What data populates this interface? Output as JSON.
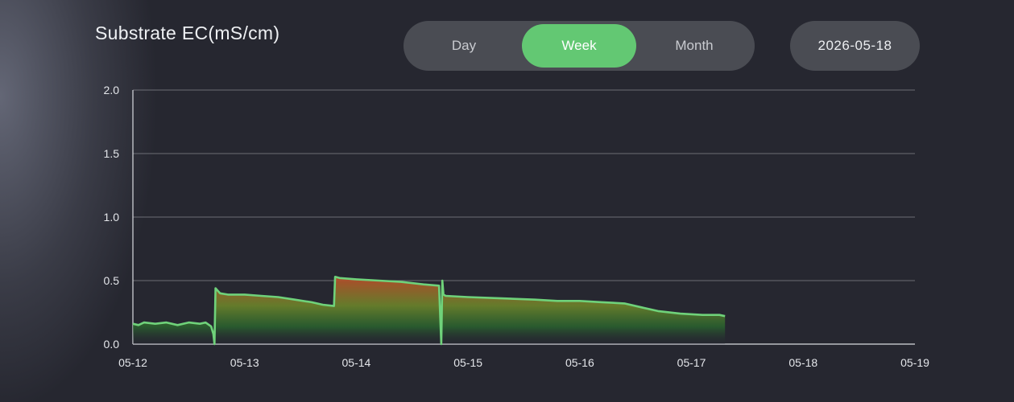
{
  "header": {
    "title": "Substrate EC(mS/cm)",
    "tabs": [
      {
        "label": "Day",
        "active": false
      },
      {
        "label": "Week",
        "active": true
      },
      {
        "label": "Month",
        "active": false
      }
    ],
    "date": "2026-05-18"
  },
  "colors": {
    "accent": "#63c873",
    "line": "#6fd27a",
    "fill_high": "#c0462a",
    "fill_low": "#2a6b2e",
    "grid": "#8a8c93"
  },
  "chart_data": {
    "type": "area",
    "title": "Substrate EC(mS/cm)",
    "xlabel": "",
    "ylabel": "",
    "ylim": [
      0,
      2.0
    ],
    "yticks": [
      "0.0",
      "0.5",
      "1.0",
      "1.5",
      "2.0"
    ],
    "xticks": [
      "05-12",
      "05-13",
      "05-14",
      "05-15",
      "05-16",
      "05-17",
      "05-18",
      "05-19"
    ],
    "grid": true,
    "series": [
      {
        "x": [
          0.0,
          0.05,
          0.1,
          0.2,
          0.3,
          0.4,
          0.5,
          0.6,
          0.65,
          0.7,
          0.72,
          0.73,
          0.74,
          0.78,
          0.85,
          1.0,
          1.15,
          1.3,
          1.45,
          1.6,
          1.7,
          1.8,
          1.81,
          1.85,
          2.0,
          2.2,
          2.4,
          2.6,
          2.74,
          2.76,
          2.77,
          2.78,
          2.8,
          3.0,
          3.3,
          3.6,
          3.8,
          4.0,
          4.2,
          4.4,
          4.55,
          4.7,
          4.9,
          5.1,
          5.25,
          5.3
        ],
        "values": [
          0.16,
          0.15,
          0.17,
          0.16,
          0.17,
          0.15,
          0.17,
          0.16,
          0.17,
          0.14,
          0.08,
          0.0,
          0.44,
          0.4,
          0.39,
          0.39,
          0.38,
          0.37,
          0.35,
          0.33,
          0.31,
          0.3,
          0.53,
          0.52,
          0.51,
          0.5,
          0.49,
          0.47,
          0.46,
          0.0,
          0.5,
          0.39,
          0.38,
          0.37,
          0.36,
          0.35,
          0.34,
          0.34,
          0.33,
          0.32,
          0.29,
          0.26,
          0.24,
          0.23,
          0.23,
          0.22
        ]
      }
    ]
  }
}
